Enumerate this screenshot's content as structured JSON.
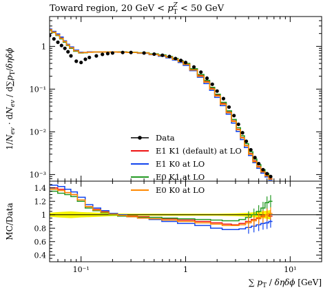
{
  "chart_data": [
    {
      "type": "line",
      "title": "Toward region, 20 GeV < p_T^Z < 50 GeV",
      "xlabel": "∑ p_T / δη δϕ [GeV]",
      "ylabel": "1/N_ev · dN_ev / d∑p_T/δηδϕ",
      "xscale": "log",
      "yscale": "log",
      "xlim": [
        0.05,
        20
      ],
      "ylim": [
        0.0007,
        5
      ],
      "legend_position": "center",
      "x_tick_labels": [
        "10⁻¹",
        "1",
        "10¹"
      ],
      "y_tick_labels": [
        "10⁻³",
        "10⁻²",
        "10⁻¹",
        "1"
      ],
      "x": [
        0.05,
        0.055,
        0.06,
        0.065,
        0.07,
        0.075,
        0.08,
        0.09,
        0.1,
        0.11,
        0.12,
        0.14,
        0.16,
        0.18,
        0.2,
        0.25,
        0.3,
        0.4,
        0.5,
        0.6,
        0.7,
        0.8,
        0.9,
        1.0,
        1.2,
        1.4,
        1.6,
        1.8,
        2.0,
        2.3,
        2.6,
        2.9,
        3.2,
        3.5,
        3.8,
        4.2,
        4.6,
        5.0,
        5.5,
        6.0,
        6.5
      ],
      "series": [
        {
          "name": "Data",
          "color": "#000000",
          "style": "markers",
          "y": [
            1.8,
            1.5,
            1.25,
            1.05,
            0.9,
            0.75,
            0.6,
            0.45,
            0.42,
            0.5,
            0.55,
            0.6,
            0.65,
            0.68,
            0.7,
            0.72,
            0.72,
            0.7,
            0.66,
            0.62,
            0.58,
            0.52,
            0.47,
            0.42,
            0.33,
            0.25,
            0.18,
            0.13,
            0.09,
            0.06,
            0.038,
            0.024,
            0.015,
            0.0095,
            0.006,
            0.0038,
            0.0025,
            0.0018,
            0.0013,
            0.00105,
            0.0009
          ]
        },
        {
          "name": "E1 K1 (default) at LO",
          "color": "#ee1111",
          "style": "histogram",
          "y": [
            2.5,
            2.2,
            1.9,
            1.6,
            1.3,
            1.1,
            0.95,
            0.8,
            0.72,
            0.72,
            0.74,
            0.74,
            0.74,
            0.74,
            0.74,
            0.74,
            0.73,
            0.7,
            0.66,
            0.62,
            0.57,
            0.51,
            0.45,
            0.39,
            0.29,
            0.21,
            0.15,
            0.105,
            0.072,
            0.046,
            0.029,
            0.018,
            0.0115,
            0.0074,
            0.0048,
            0.0031,
            0.0021,
            0.00155,
            0.00118,
            0.00095,
            0.0008
          ]
        },
        {
          "name": "E1 K0 at LO",
          "color": "#1144ee",
          "style": "histogram",
          "y": [
            2.55,
            2.25,
            1.95,
            1.65,
            1.35,
            1.12,
            0.97,
            0.82,
            0.73,
            0.72,
            0.74,
            0.74,
            0.74,
            0.74,
            0.74,
            0.73,
            0.72,
            0.69,
            0.64,
            0.59,
            0.54,
            0.48,
            0.42,
            0.36,
            0.27,
            0.19,
            0.135,
            0.094,
            0.064,
            0.041,
            0.026,
            0.016,
            0.0102,
            0.0066,
            0.0043,
            0.0028,
            0.0019,
            0.0014,
            0.00108,
            0.00088,
            0.00075
          ]
        },
        {
          "name": "E0 K1 at LO",
          "color": "#229922",
          "style": "histogram",
          "y": [
            2.4,
            2.1,
            1.8,
            1.5,
            1.25,
            1.05,
            0.9,
            0.77,
            0.7,
            0.71,
            0.73,
            0.74,
            0.74,
            0.74,
            0.74,
            0.74,
            0.73,
            0.71,
            0.67,
            0.63,
            0.58,
            0.52,
            0.46,
            0.4,
            0.3,
            0.22,
            0.16,
            0.11,
            0.076,
            0.049,
            0.031,
            0.0195,
            0.0125,
            0.0081,
            0.0053,
            0.0034,
            0.0023,
            0.0017,
            0.0013,
            0.00105,
            0.00088
          ]
        },
        {
          "name": "E0 K0 at LO",
          "color": "#ff8800",
          "style": "histogram",
          "y": [
            2.45,
            2.15,
            1.85,
            1.55,
            1.3,
            1.08,
            0.93,
            0.79,
            0.71,
            0.72,
            0.73,
            0.74,
            0.74,
            0.74,
            0.74,
            0.73,
            0.72,
            0.7,
            0.65,
            0.61,
            0.56,
            0.5,
            0.44,
            0.38,
            0.28,
            0.2,
            0.145,
            0.1,
            0.069,
            0.044,
            0.028,
            0.0175,
            0.0112,
            0.0072,
            0.0047,
            0.003,
            0.002,
            0.0015,
            0.00115,
            0.00093,
            0.00078
          ]
        }
      ]
    },
    {
      "type": "line",
      "ylabel": "MC/Data",
      "xlabel": "∑ p_T / δη δϕ [GeV]",
      "xscale": "log",
      "xlim": [
        0.05,
        20
      ],
      "ylim": [
        0.3,
        1.5
      ],
      "y_tick_labels": [
        "0.4",
        "0.6",
        "0.8",
        "1",
        "1.2",
        "1.4"
      ],
      "x_tick_labels": [
        "10⁻¹",
        "1",
        "10¹"
      ],
      "data_uncertainty_band": {
        "color": "#f5f500",
        "x": [
          0.05,
          0.06,
          0.08,
          0.1,
          0.15,
          0.2,
          0.3,
          0.5,
          1.0,
          2.0,
          3.0,
          4.0,
          5.0,
          6.0,
          6.5
        ],
        "lower": [
          0.97,
          0.96,
          0.95,
          0.96,
          0.97,
          0.98,
          0.985,
          0.985,
          0.985,
          0.985,
          0.98,
          0.97,
          0.955,
          0.94,
          0.93
        ],
        "upper": [
          1.03,
          1.04,
          1.05,
          1.04,
          1.03,
          1.02,
          1.015,
          1.015,
          1.015,
          1.015,
          1.02,
          1.03,
          1.045,
          1.06,
          1.07
        ]
      },
      "series": [
        {
          "name": "E1 K1 (default) at LO",
          "color": "#ee1111",
          "x": [
            0.055,
            0.065,
            0.075,
            0.085,
            0.1,
            0.12,
            0.14,
            0.17,
            0.2,
            0.25,
            0.3,
            0.4,
            0.5,
            0.7,
            1.0,
            1.5,
            2.0,
            2.5,
            3.0,
            3.5,
            4.0,
            4.5,
            5.0,
            5.5,
            6.0,
            6.5
          ],
          "y": [
            1.4,
            1.38,
            1.33,
            1.3,
            1.22,
            1.12,
            1.08,
            1.05,
            1.02,
            1.0,
            0.98,
            0.97,
            0.96,
            0.94,
            0.92,
            0.9,
            0.88,
            0.86,
            0.85,
            0.87,
            0.9,
            0.93,
            0.95,
            0.98,
            1.0,
            0.98
          ]
        },
        {
          "name": "E1 K0 at LO",
          "color": "#1144ee",
          "x": [
            0.055,
            0.065,
            0.075,
            0.085,
            0.1,
            0.12,
            0.14,
            0.17,
            0.2,
            0.25,
            0.3,
            0.4,
            0.5,
            0.7,
            1.0,
            1.5,
            2.0,
            2.5,
            3.0,
            3.5,
            4.0,
            4.5,
            5.0,
            5.5,
            6.0,
            6.5
          ],
          "y": [
            1.44,
            1.42,
            1.38,
            1.34,
            1.26,
            1.15,
            1.1,
            1.06,
            1.02,
            1.0,
            0.97,
            0.95,
            0.93,
            0.9,
            0.87,
            0.84,
            0.8,
            0.78,
            0.78,
            0.79,
            0.81,
            0.83,
            0.85,
            0.87,
            0.88,
            0.9
          ]
        },
        {
          "name": "E0 K1 at LO",
          "color": "#229922",
          "x": [
            0.055,
            0.065,
            0.075,
            0.085,
            0.1,
            0.12,
            0.14,
            0.17,
            0.2,
            0.25,
            0.3,
            0.4,
            0.5,
            0.7,
            1.0,
            1.5,
            2.0,
            2.5,
            3.0,
            3.5,
            4.0,
            4.5,
            5.0,
            5.5,
            6.0,
            6.5
          ],
          "y": [
            1.35,
            1.32,
            1.3,
            1.27,
            1.2,
            1.1,
            1.06,
            1.03,
            1.0,
            0.98,
            0.97,
            0.96,
            0.96,
            0.95,
            0.94,
            0.93,
            0.92,
            0.91,
            0.91,
            0.93,
            0.96,
            1.0,
            1.05,
            1.1,
            1.18,
            1.2
          ]
        },
        {
          "name": "E0 K0 at LO",
          "color": "#ff8800",
          "x": [
            0.055,
            0.065,
            0.075,
            0.085,
            0.1,
            0.12,
            0.14,
            0.17,
            0.2,
            0.25,
            0.3,
            0.4,
            0.5,
            0.7,
            1.0,
            1.5,
            2.0,
            2.5,
            3.0,
            3.5,
            4.0,
            4.5,
            5.0,
            5.5,
            6.0,
            6.5
          ],
          "y": [
            1.38,
            1.36,
            1.33,
            1.3,
            1.22,
            1.12,
            1.07,
            1.04,
            1.01,
            0.99,
            0.97,
            0.95,
            0.94,
            0.92,
            0.9,
            0.88,
            0.86,
            0.84,
            0.84,
            0.85,
            0.88,
            0.91,
            0.94,
            0.97,
            1.0,
            1.02
          ]
        }
      ]
    }
  ]
}
